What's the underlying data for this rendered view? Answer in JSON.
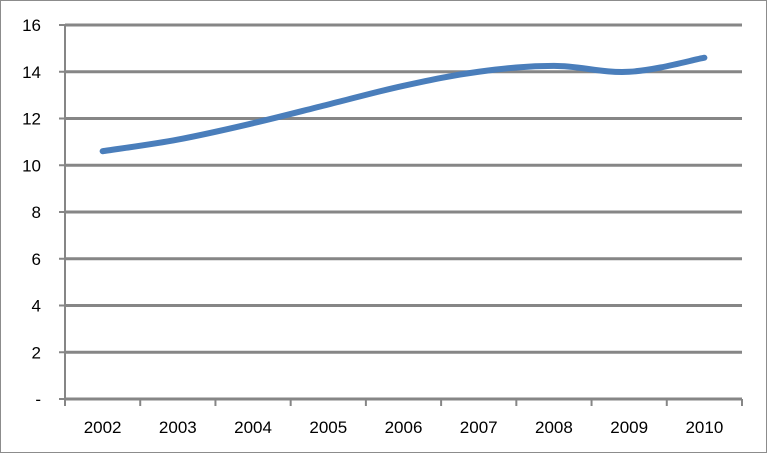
{
  "chart_data": {
    "type": "line",
    "title": "",
    "xlabel": "",
    "ylabel": "",
    "categories": [
      "2002",
      "2003",
      "2004",
      "2005",
      "2006",
      "2007",
      "2008",
      "2009",
      "2010"
    ],
    "series": [
      {
        "values": [
          10.6,
          11.1,
          11.8,
          12.6,
          13.4,
          14.0,
          14.25,
          14.0,
          14.6
        ],
        "color": "#4A7EBB"
      }
    ],
    "ylim": [
      0,
      16
    ],
    "y_ticks": [
      "-",
      "2",
      "4",
      "6",
      "8",
      "10",
      "12",
      "14",
      "16"
    ],
    "grid": true,
    "gridline_color": "#868686",
    "legend": "none"
  }
}
